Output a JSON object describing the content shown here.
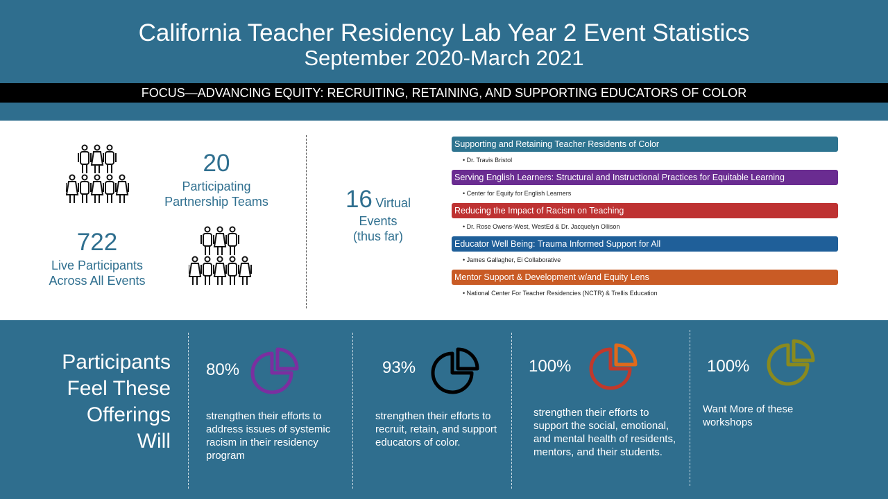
{
  "header": {
    "title": "California Teacher Residency Lab Year 2 Event Statistics",
    "subtitle": "September 2020-March 2021",
    "focus": "FOCUS—ADVANCING EQUITY: RECRUITING, RETAINING, AND SUPPORTING EDUCATORS OF COLOR"
  },
  "stats": {
    "teams": {
      "value": "20",
      "label1": "Participating",
      "label2": "Partnership Teams"
    },
    "participants": {
      "value": "722",
      "label1": "Live Participants",
      "label2": "Across All Events"
    },
    "events": {
      "value": "16",
      "label1": "Virtual",
      "label2": "Events",
      "label3": "(thus far)"
    }
  },
  "events": [
    {
      "title": "Supporting and Retaining Teacher Residents of Color",
      "presenter": "• Dr. Travis Bristol",
      "color": "#2e7490"
    },
    {
      "title": "Serving English Learners: Structural and Instructional Practices for Equitable Learning",
      "presenter": "• Center for Equity for English Learners",
      "color": "#6a2c91"
    },
    {
      "title": "Reducing the Impact of Racism on Teaching",
      "presenter": "• Dr. Rose Owens-West, WestEd & Dr. Jacquelyn Ollison",
      "color": "#be3232"
    },
    {
      "title": "Educator Well Being: Trauma Informed Support for All",
      "presenter": "• James Gallagher, Ei Collaborative",
      "color": "#1f5f99"
    },
    {
      "title": "Mentor Support & Development w/and Equity Lens",
      "presenter": "• National Center For Teacher Residencies (NCTR) & Trellis Education",
      "color": "#c95b25"
    }
  ],
  "feedback": {
    "heading": [
      "Participants",
      "Feel These",
      "Offerings",
      "Will"
    ],
    "items": [
      {
        "percent": "80%",
        "text": "strengthen their efforts to address issues of systemic racism in their residency program",
        "icon": "pie-chart-icon",
        "color": "#7b2fa0",
        "accent": "#7b2fa0"
      },
      {
        "percent": "93%",
        "text": "strengthen their efforts to recruit, retain, and support educators of color.",
        "icon": "pie-chart-icon",
        "color": "#000000",
        "accent": "#000000"
      },
      {
        "percent": "100%",
        "text": "strengthen their efforts to support the social, emotional, and mental health of residents, mentors, and their students.",
        "icon": "pie-chart-icon",
        "color": "#c0392b",
        "accent": "#e06a1b"
      },
      {
        "percent": "100%",
        "text": "Want More of these workshops",
        "icon": "pie-chart-icon",
        "color": "#8a8a1e",
        "accent": "#8a8a1e"
      }
    ]
  }
}
